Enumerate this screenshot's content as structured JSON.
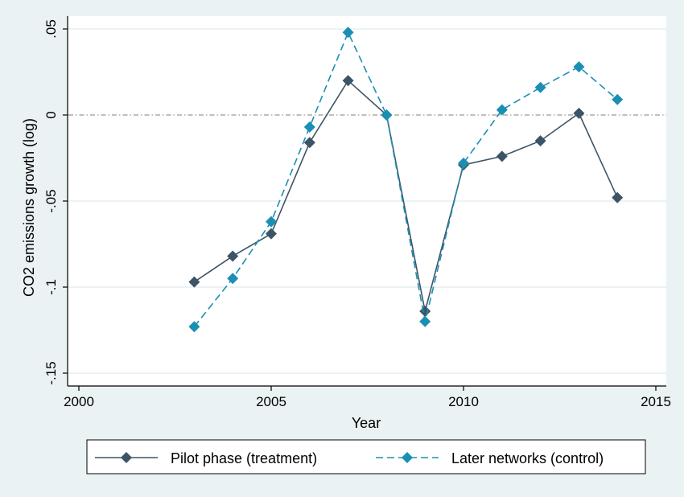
{
  "chart_data": {
    "type": "line",
    "title": "",
    "xlabel": "Year",
    "ylabel": "CO2 emissions growth (log)",
    "xlim": [
      2000,
      2015
    ],
    "ylim": [
      -0.15,
      0.05
    ],
    "x_ticks": [
      2000,
      2005,
      2010,
      2015
    ],
    "x_tick_labels": [
      "2000",
      "2005",
      "2010",
      "2015"
    ],
    "y_ticks": [
      -0.15,
      -0.1,
      -0.05,
      0,
      0.05
    ],
    "y_tick_labels": [
      "-.15",
      "-.1",
      "-.05",
      "0",
      ".05"
    ],
    "grid": true,
    "reference_line": {
      "y": 0,
      "style": "dash-dot"
    },
    "legend_position": "bottom",
    "x": [
      2003,
      2004,
      2005,
      2006,
      2007,
      2008,
      2009,
      2010,
      2011,
      2012,
      2013,
      2014
    ],
    "series": [
      {
        "name": "Pilot phase (treatment)",
        "color": "#3d5466",
        "line_style": "solid",
        "marker": "diamond",
        "values": [
          -0.097,
          -0.082,
          -0.069,
          -0.016,
          0.02,
          0.0,
          -0.114,
          -0.029,
          -0.024,
          -0.015,
          0.001,
          -0.048
        ]
      },
      {
        "name": "Later networks (control)",
        "color": "#1b8fb3",
        "line_style": "dashed",
        "marker": "diamond",
        "values": [
          -0.123,
          -0.095,
          -0.062,
          -0.007,
          0.048,
          0.0,
          -0.12,
          -0.028,
          0.003,
          0.016,
          0.028,
          0.009
        ]
      }
    ]
  }
}
